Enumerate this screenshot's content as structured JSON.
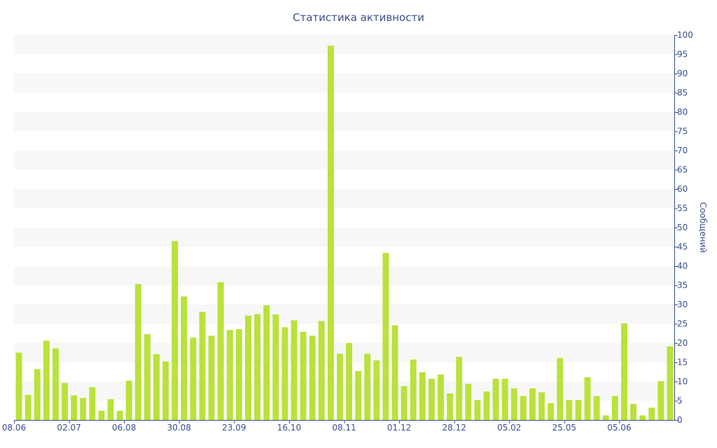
{
  "chart_data": {
    "type": "bar",
    "title": "Статистика активности",
    "ylabel": "Сообщений",
    "xlabel": "",
    "ylim": [
      0,
      100
    ],
    "y_ticks": [
      0,
      5,
      10,
      15,
      20,
      25,
      30,
      35,
      40,
      45,
      50,
      55,
      60,
      65,
      70,
      75,
      80,
      85,
      90,
      95,
      100
    ],
    "y_axis_position": "right",
    "x_tick_labels": [
      {
        "label": "08.06",
        "index": 0
      },
      {
        "label": "02.07",
        "index": 6
      },
      {
        "label": "06.08",
        "index": 12
      },
      {
        "label": "30.08",
        "index": 18
      },
      {
        "label": "23.09",
        "index": 24
      },
      {
        "label": "16.10",
        "index": 30
      },
      {
        "label": "08.11",
        "index": 36
      },
      {
        "label": "01.12",
        "index": 42
      },
      {
        "label": "28.12",
        "index": 48
      },
      {
        "label": "05.02",
        "index": 54
      },
      {
        "label": "25.05",
        "index": 60
      },
      {
        "label": "05.06",
        "index": 66
      }
    ],
    "values": [
      17.5,
      6.5,
      13.2,
      20.6,
      18.6,
      9.6,
      6.4,
      5.7,
      8.5,
      2.4,
      5.4,
      2.4,
      10.2,
      35.3,
      22.3,
      17.1,
      15.2,
      46.5,
      32.1,
      21.4,
      28.1,
      21.9,
      35.8,
      23.4,
      23.6,
      27.1,
      27.5,
      29.8,
      27.4,
      24.1,
      25.9,
      22.9,
      21.9,
      25.7,
      97.2,
      17.2,
      20.0,
      12.7,
      17.2,
      15.5,
      43.4,
      24.6,
      8.8,
      15.7,
      12.4,
      10.7,
      11.8,
      6.9,
      16.4,
      9.4,
      5.2,
      7.4,
      10.7,
      10.7,
      8.2,
      6.2,
      8.2,
      7.2,
      4.4,
      16.1,
      5.2,
      5.2,
      11.1,
      6.2,
      1.2,
      6.2,
      25.1,
      4.2,
      1.2,
      3.2,
      10.1,
      19.1
    ],
    "bar_color": "#b9e23a",
    "band_color": "#f7f7f7",
    "axis_color": "#3a4f8a",
    "grid": "alternating horizontal bands"
  }
}
